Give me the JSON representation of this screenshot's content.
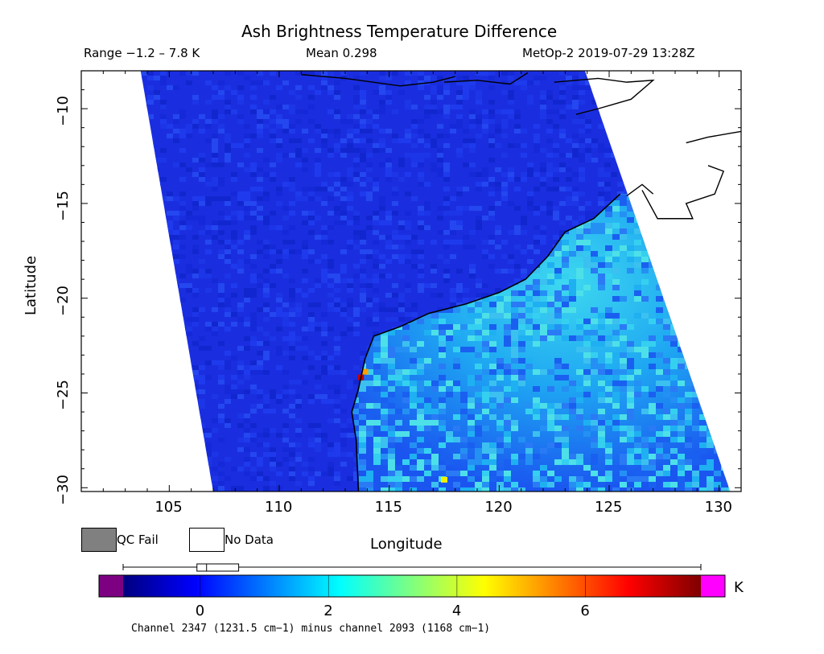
{
  "header": {
    "title": "Ash Brightness Temperature Difference",
    "range": "Range −1.2 – 7.8 K",
    "mean": "Mean 0.298",
    "source": "MetOp-2 2019-07-29 13:28Z"
  },
  "chart_data": {
    "type": "heatmap",
    "title": "Ash Brightness Temperature Difference",
    "xlabel": "Longitude",
    "ylabel": "Latitude",
    "xlim": [
      101,
      131
    ],
    "ylim": [
      -30.2,
      -8
    ],
    "x_ticks": [
      105,
      110,
      115,
      120,
      125,
      130
    ],
    "y_ticks": [
      -10,
      -15,
      -20,
      -25,
      -30
    ],
    "x_tick_labels": [
      "105",
      "110",
      "115",
      "120",
      "125",
      "130"
    ],
    "y_tick_labels": [
      "−10",
      "−15",
      "−20",
      "−25",
      "−30"
    ],
    "swath_corners": {
      "top_left": [
        103.7,
        -8
      ],
      "top_right": [
        123.9,
        -8
      ],
      "bottom_right": [
        130.5,
        -30.2
      ],
      "bottom_left": [
        107.0,
        -30.2
      ]
    },
    "land_boundary_approx": [
      [
        113.6,
        -30.2
      ],
      [
        113.5,
        -27.5
      ],
      [
        113.3,
        -26.0
      ],
      [
        113.6,
        -24.8
      ],
      [
        113.9,
        -23.2
      ],
      [
        114.3,
        -22.0
      ],
      [
        115.5,
        -21.5
      ],
      [
        116.8,
        -20.8
      ],
      [
        118.5,
        -20.3
      ],
      [
        120.0,
        -19.7
      ],
      [
        121.2,
        -19.0
      ],
      [
        122.2,
        -17.8
      ],
      [
        123.0,
        -16.5
      ],
      [
        124.3,
        -15.8
      ],
      [
        125.5,
        -14.5
      ]
    ],
    "values_summary": {
      "ocean_typical_K": 0.0,
      "land_typical_K": 1.5,
      "land_max_K": 3.5,
      "hotspots": [
        {
          "lon": 113.7,
          "lat": -24.2,
          "value_K": 7.0
        },
        {
          "lon": 113.9,
          "lat": -23.9,
          "value_K": 5.5
        },
        {
          "lon": 117.5,
          "lat": -29.6,
          "value_K": 4.8
        }
      ]
    },
    "legend_items": [
      "QC Fail",
      "No Data"
    ],
    "colorbar": {
      "min": -1.2,
      "max": 7.8,
      "ticks": [
        0,
        2,
        4,
        6
      ],
      "tick_labels": [
        "0",
        "2",
        "4",
        "6"
      ],
      "unit": "K",
      "under_color": "#7d0082",
      "over_color": "#ff00ff",
      "stops": [
        "#00007f",
        "#0000ff",
        "#007fff",
        "#00ffff",
        "#7fff7f",
        "#ffff00",
        "#ff7f00",
        "#ff0000",
        "#7f0000"
      ],
      "caption": "Channel 2347 (1231.5 cm−1) minus channel 2093 (1168 cm−1)",
      "box_range": [
        -0.05,
        0.6
      ],
      "box_median": 0.1,
      "whisker_range": [
        -1.2,
        7.8
      ]
    }
  },
  "colors": {
    "ocean": "#1a2ee0",
    "land_low": "#1a4cf0",
    "land_high": "#20d8ee",
    "qc_fail": "#808080",
    "no_data": "#ffffff"
  }
}
